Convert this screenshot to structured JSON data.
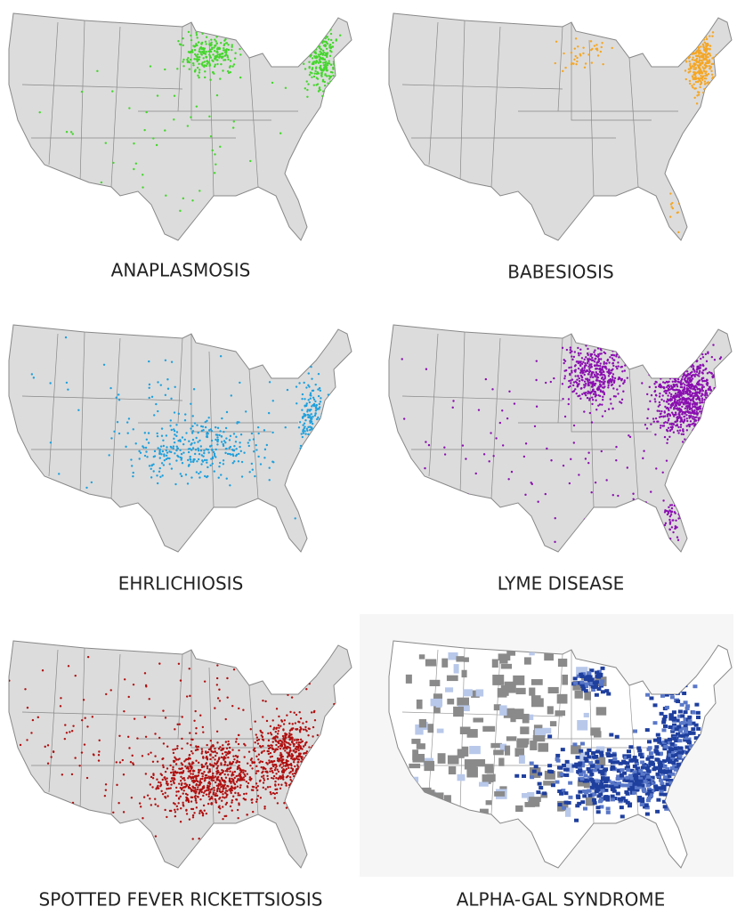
{
  "panels": [
    {
      "label": "ANAPLASMOSIS",
      "color": "#44d62c"
    },
    {
      "label": "BABESIOSIS",
      "color": "#f5a623"
    },
    {
      "label": "EHRLICHIOSIS",
      "color": "#1ea0dc"
    },
    {
      "label": "LYME DISEASE",
      "color": "#8a0fb0"
    },
    {
      "label": "SPOTTED FEVER RICKETTSIOSIS",
      "color": "#b01010"
    },
    {
      "label": "ALPHA-GAL SYNDROME",
      "color": "#1f3f9e"
    }
  ]
}
